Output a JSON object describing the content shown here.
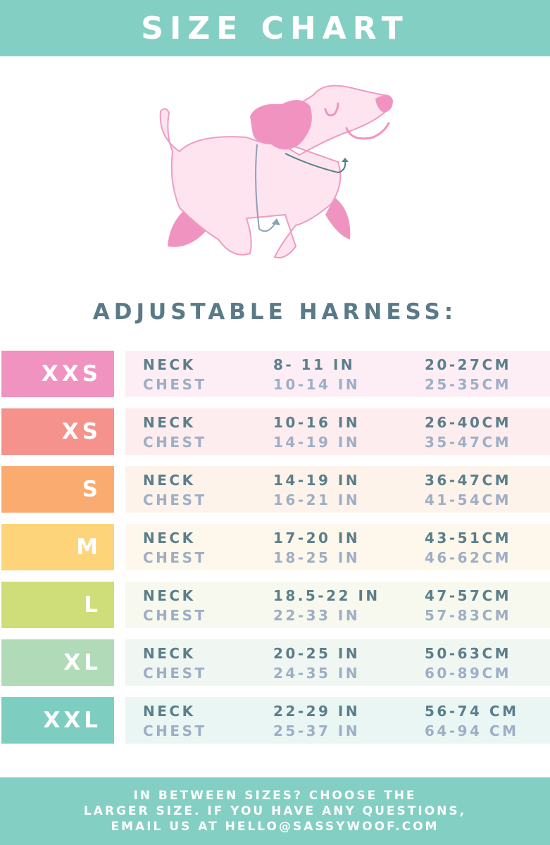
{
  "header": {
    "title": "SIZE CHART"
  },
  "subtitle": "ADJUSTABLE HARNESS:",
  "colors": {
    "header": "#84cfc3",
    "title_text": "#5a7a87",
    "neck_text": "#5b7e8a",
    "chest_text": "#9eaec6",
    "dog_pink": "#f193c0",
    "dog_body": "#fde4ee"
  },
  "rows": [
    {
      "size": "XXS",
      "neck_label": "NECK",
      "chest_label": "CHEST",
      "neck_in": "8- 11 IN",
      "chest_in": "10-14 IN",
      "neck_cm": "20-27CM",
      "chest_cm": "25-35CM",
      "color": "#f193c0",
      "bg": "#fdeef6"
    },
    {
      "size": "XS",
      "neck_label": "NECK",
      "chest_label": "CHEST",
      "neck_in": "10-16 IN",
      "chest_in": "14-19 IN",
      "neck_cm": "26-40CM",
      "chest_cm": "35-47CM",
      "color": "#f4928b",
      "bg": "#fdedee"
    },
    {
      "size": "S",
      "neck_label": "NECK",
      "chest_label": "CHEST",
      "neck_in": "14-19 IN",
      "chest_in": "16-21 IN",
      "neck_cm": "36-47CM",
      "chest_cm": "41-54CM",
      "color": "#f9ab70",
      "bg": "#fdf3ea"
    },
    {
      "size": "M",
      "neck_label": "NECK",
      "chest_label": "CHEST",
      "neck_in": "17-20 IN",
      "chest_in": "18-25 IN",
      "neck_cm": "43-51CM",
      "chest_cm": "46-62CM",
      "color": "#fdd47a",
      "bg": "#fef8ec"
    },
    {
      "size": "L",
      "neck_label": "NECK",
      "chest_label": "CHEST",
      "neck_in": "18.5-22 IN",
      "chest_in": "22-33 IN",
      "neck_cm": "47-57CM",
      "chest_cm": "57-83CM",
      "color": "#cfde79",
      "bg": "#f7f9ee"
    },
    {
      "size": "XL",
      "neck_label": "NECK",
      "chest_label": "CHEST",
      "neck_in": "20-25 IN",
      "chest_in": "24-35 IN",
      "neck_cm": "50-63CM",
      "chest_cm": "60-89CM",
      "color": "#b1dbb8",
      "bg": "#f0f7f2"
    },
    {
      "size": "XXL",
      "neck_label": "NECK",
      "chest_label": "CHEST",
      "neck_in": "22-29 IN",
      "chest_in": "25-37 IN",
      "neck_cm": "56-74 CM",
      "chest_cm": "64-94 CM",
      "color": "#7dcdc0",
      "bg": "#e9f6f4"
    }
  ],
  "footer": {
    "lines": [
      "IN BETWEEN SIZES? CHOOSE THE",
      "LARGER SIZE. IF YOU HAVE ANY QUESTIONS,",
      "EMAIL US AT HELLO@SASSYWOOF.COM"
    ]
  }
}
